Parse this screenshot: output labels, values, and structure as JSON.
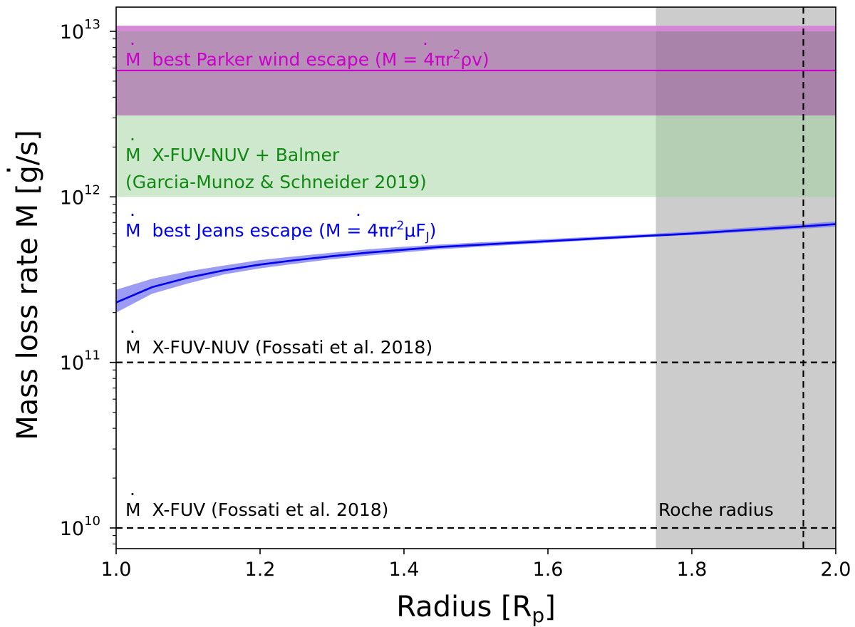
{
  "chart_data": {
    "type": "line",
    "xlabel": "Radius [R",
    "xlabel_sub": "p",
    "xlabel_close": "]",
    "ylabel": "Mass loss rate M [g/s]",
    "xlim": [
      1.0,
      2.0
    ],
    "ylim": [
      7500000000.0,
      14000000000000.0
    ],
    "yscale": "log",
    "x_ticks": [
      {
        "value": 1.0,
        "label": "1.0"
      },
      {
        "value": 1.2,
        "label": "1.2"
      },
      {
        "value": 1.4,
        "label": "1.4"
      },
      {
        "value": 1.6,
        "label": "1.6"
      },
      {
        "value": 1.8,
        "label": "1.8"
      },
      {
        "value": 2.0,
        "label": "2.0"
      }
    ],
    "y_ticks": [
      {
        "value": 10000000000.0,
        "base": "10",
        "exp": "10"
      },
      {
        "value": 100000000000.0,
        "base": "10",
        "exp": "11"
      },
      {
        "value": 1000000000000.0,
        "base": "10",
        "exp": "12"
      },
      {
        "value": 10000000000000.0,
        "base": "10",
        "exp": "13"
      }
    ],
    "series": [
      {
        "x": [
          1.0,
          1.05,
          1.1,
          1.15,
          1.2,
          1.25,
          1.3,
          1.35,
          1.4,
          1.45,
          1.5,
          1.55,
          1.6,
          1.65,
          1.7,
          1.75,
          1.8,
          1.85,
          1.9,
          1.95,
          2.0
        ],
        "y": [
          230000000000.0,
          285000000000.0,
          325000000000.0,
          360000000000.0,
          390000000000.0,
          415000000000.0,
          438000000000.0,
          460000000000.0,
          480000000000.0,
          498000000000.0,
          512000000000.0,
          526000000000.0,
          540000000000.0,
          555000000000.0,
          570000000000.0,
          585000000000.0,
          600000000000.0,
          620000000000.0,
          640000000000.0,
          660000000000.0,
          685000000000.0
        ],
        "y_low": [
          200000000000.0,
          260000000000.0,
          300000000000.0,
          340000000000.0,
          370000000000.0,
          395000000000.0,
          420000000000.0,
          442000000000.0,
          462000000000.0,
          482000000000.0,
          497000000000.0,
          512000000000.0,
          527000000000.0,
          543000000000.0,
          558000000000.0,
          574000000000.0,
          588000000000.0,
          605000000000.0,
          622000000000.0,
          640000000000.0,
          660000000000.0
        ],
        "y_high": [
          275000000000.0,
          320000000000.0,
          355000000000.0,
          385000000000.0,
          415000000000.0,
          438000000000.0,
          460000000000.0,
          482000000000.0,
          500000000000.0,
          515000000000.0,
          530000000000.0,
          542000000000.0,
          556000000000.0,
          570000000000.0,
          585000000000.0,
          600000000000.0,
          618000000000.0,
          640000000000.0,
          662000000000.0,
          685000000000.0,
          710000000000.0
        ],
        "color": "#0000ee",
        "band_color": "#7b7bf0"
      }
    ],
    "bands": [
      {
        "y_low": 3100000000000.0,
        "y_high": 10800000000000.0,
        "color": "#9e6b9e",
        "opacity": 0.75,
        "top_strip_from": 10000000000000.0,
        "top_strip_color": "#d98ad9"
      },
      {
        "y_low": 1000000000000.0,
        "y_high": 3100000000000.0,
        "color": "#9bd19b",
        "opacity": 0.5
      }
    ],
    "hlines": [
      {
        "y": 5800000000000.0,
        "color": "#cc00cc",
        "style": "solid"
      },
      {
        "y": 100000000000.0,
        "color": "#000000",
        "style": "dashed"
      },
      {
        "y": 10000000000.0,
        "color": "#000000",
        "style": "dashed"
      }
    ],
    "vregion": {
      "x_from": 1.75,
      "x_to": 2.0,
      "color": "#808080",
      "opacity": 0.4
    },
    "vline": {
      "x": 1.955,
      "color": "#000000",
      "style": "dashed"
    },
    "annotations": {
      "parker": {
        "prefix": "M",
        "text": "best Parker wind escape (",
        "eq": "M = 4πr",
        "eq_sup": "2",
        "eq_tail": "ρv)",
        "color": "#cc00cc"
      },
      "xfuv_nuv_balmer_1": {
        "prefix": "M",
        "text": "X-FUV-NUV + Balmer",
        "color": "#118811"
      },
      "xfuv_nuv_balmer_2": {
        "text": "(Garcia-Munoz & Schneider 2019)",
        "color": "#118811"
      },
      "jeans": {
        "prefix": "M",
        "text": "best Jeans escape (",
        "eq": "M = 4πr",
        "eq_sup": "2",
        "eq_tail": "μF",
        "eq_sub": "J",
        "eq_close": ")",
        "color": "#0000ee"
      },
      "xfuv_nuv": {
        "prefix": "M",
        "text": "X-FUV-NUV (Fossati et al. 2018)",
        "color": "#000000"
      },
      "xfuv": {
        "prefix": "M",
        "text": "X-FUV (Fossati et al. 2018)",
        "color": "#000000"
      },
      "roche": {
        "text": "Roche radius",
        "color": "#000000"
      }
    }
  }
}
